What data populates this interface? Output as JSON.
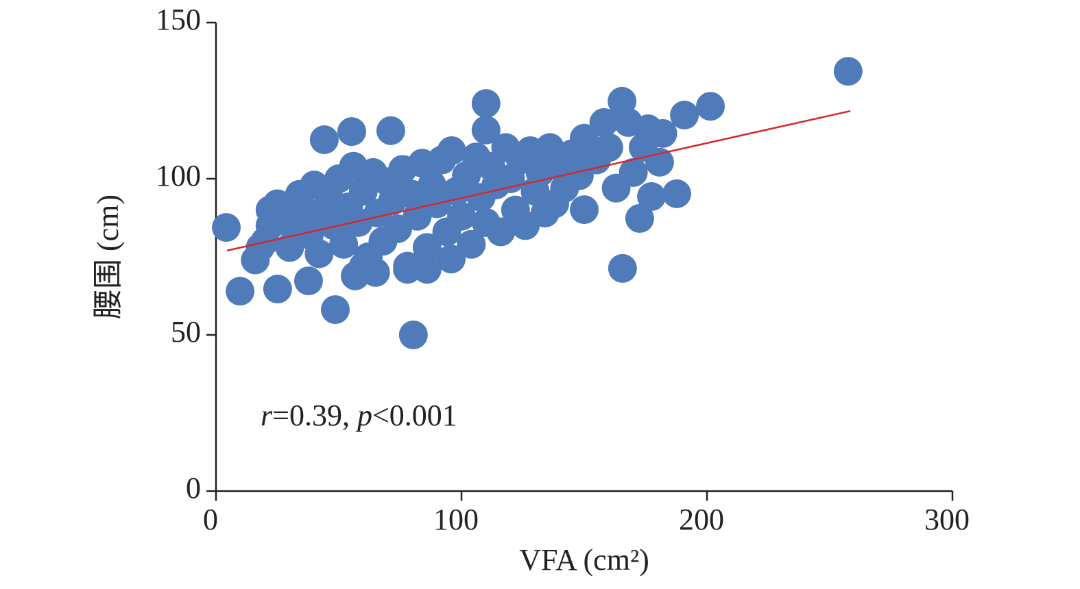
{
  "chart_data": {
    "type": "scatter",
    "x_label": "VFA (cm²)",
    "y_label": "腰围 (cm)",
    "annotation": [
      "r",
      "=0.39, ",
      "p",
      "<0.001"
    ],
    "xlim": [
      0,
      300
    ],
    "xticks": [
      0,
      100,
      200,
      300
    ],
    "ylim": [
      0,
      150
    ],
    "yticks": [
      0,
      50,
      100,
      150
    ],
    "grid": false,
    "series": [
      {
        "color": "#4f7bba",
        "x": [
          4.2,
          9.8,
          48.6,
          80.4,
          165.6,
          172.6,
          187.7,
          177.4,
          150,
          165.4,
          110,
          110,
          201.4,
          190.8,
          182,
          180.7,
          44.1,
          55.3,
          71.2,
          22,
          25.1,
          37.7,
          56.7,
          95.8,
          257.5,
          20,
          22,
          25,
          28,
          30,
          32,
          34,
          36,
          38,
          40,
          42,
          44,
          46,
          48,
          50,
          52,
          54,
          56,
          58,
          60,
          62,
          64,
          66,
          68,
          70,
          72,
          74,
          76,
          78,
          80,
          82,
          84,
          86,
          88,
          90,
          92,
          94,
          96,
          98,
          100,
          102,
          104,
          106,
          108,
          110,
          112,
          114,
          116,
          118,
          120,
          122,
          124,
          126,
          128,
          130,
          132,
          134,
          136,
          138,
          140,
          142,
          145,
          148,
          150,
          155,
          158,
          160,
          163,
          168,
          170,
          174,
          176,
          16,
          18,
          60,
          65,
          78,
          86
        ],
        "y": [
          84.4,
          64,
          58.1,
          50,
          71.3,
          87.3,
          95.2,
          94.3,
          90.1,
          124.8,
          124.1,
          115.6,
          123.2,
          120.4,
          114.5,
          105.3,
          112.5,
          115.1,
          115.4,
          90,
          64.7,
          67.3,
          68.9,
          74.3,
          134.4,
          80,
          85,
          92,
          88,
          78,
          84,
          95,
          90,
          82,
          98,
          76,
          88,
          94,
          85,
          100,
          79,
          91,
          104,
          86,
          96,
          75,
          102,
          89,
          80,
          99,
          93,
          84,
          103,
          72,
          95,
          88,
          105,
          78,
          98,
          92,
          106,
          83,
          109,
          96,
          88,
          101,
          79,
          107,
          94,
          86,
          104,
          98,
          83,
          110,
          100,
          90,
          106,
          85,
          109,
          96,
          102,
          89,
          110,
          92,
          104,
          97,
          108,
          101,
          113,
          106,
          118,
          110,
          97,
          118,
          102,
          110,
          116,
          74,
          78,
          72,
          70,
          71,
          71
        ]
      }
    ],
    "trend_line": {
      "x": [
        4.5,
        258.4
      ],
      "y": [
        77,
        121.7
      ],
      "color": "#d7262d"
    }
  }
}
